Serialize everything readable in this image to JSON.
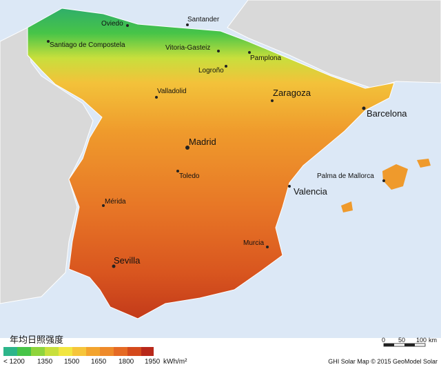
{
  "title": "年均日照强度",
  "cities": [
    "Oviedo",
    "Santander",
    "Santiago de Compostela",
    "Vitoria-Gasteiz",
    "Pamplona",
    "Logroño",
    "Valladolid",
    "Zaragoza",
    "Barcelona",
    "Madrid",
    "Toledo",
    "Palma de Mallorca",
    "Valencia",
    "Mérida",
    "Murcia",
    "Sevilla"
  ],
  "legend": {
    "labels": [
      "< 1200",
      "1350",
      "1500",
      "1650",
      "1800",
      "1950"
    ],
    "unit": "kWh/m²"
  },
  "scale": {
    "labels": [
      "0",
      "50",
      "100"
    ],
    "unit": "km"
  },
  "credit": "GHI Solar Map © 2015 GeoModel Solar"
}
